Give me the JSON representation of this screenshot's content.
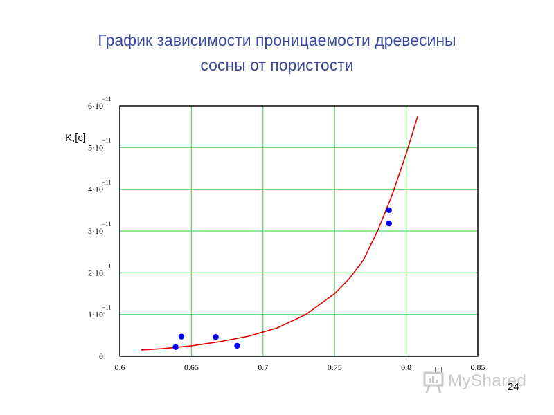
{
  "slide": {
    "title_line1": "График зависимости проницаемости древесины",
    "title_line2": "сосны от пористости",
    "page_number": "24",
    "glyph": "□"
  },
  "watermark": {
    "text": "MyShared",
    "icon": "presentation-board-icon",
    "color": "#c8c8c8"
  },
  "chart_data": {
    "type": "scatter",
    "title": "",
    "xlabel": "",
    "ylabel": "K,[c]",
    "xlim": [
      0.6,
      0.85
    ],
    "ylim": [
      0,
      6e-11
    ],
    "grid": true,
    "x_ticks": [
      {
        "value": 0.6,
        "label": "0.6"
      },
      {
        "value": 0.65,
        "label": "0.65"
      },
      {
        "value": 0.7,
        "label": "0.7"
      },
      {
        "value": 0.75,
        "label": "0.75"
      },
      {
        "value": 0.8,
        "label": "0.8"
      },
      {
        "value": 0.85,
        "label": "0.85"
      }
    ],
    "y_ticks": [
      {
        "value": 0,
        "label": "0",
        "mantissa": "0",
        "exponent": ""
      },
      {
        "value": 1e-11,
        "mantissa": "1·10",
        "exponent": "−11"
      },
      {
        "value": 2e-11,
        "mantissa": "2·10",
        "exponent": "−11"
      },
      {
        "value": 3e-11,
        "mantissa": "3·10",
        "exponent": "−11"
      },
      {
        "value": 4e-11,
        "mantissa": "4·10",
        "exponent": "−11"
      },
      {
        "value": 5e-11,
        "mantissa": "5·10",
        "exponent": "−11"
      },
      {
        "value": 6e-11,
        "mantissa": "6·10",
        "exponent": "−11"
      }
    ],
    "series": [
      {
        "type": "scatter",
        "color": "#0000ee",
        "points": [
          {
            "x": 0.639,
            "y": 2.2e-12
          },
          {
            "x": 0.643,
            "y": 4.7e-12
          },
          {
            "x": 0.667,
            "y": 4.6e-12
          },
          {
            "x": 0.682,
            "y": 2.5e-12
          },
          {
            "x": 0.788,
            "y": 3.5e-11
          },
          {
            "x": 0.788,
            "y": 3.18e-11
          }
        ]
      },
      {
        "type": "line",
        "color": "#e00000",
        "points": [
          {
            "x": 0.615,
            "y": 1.5e-12
          },
          {
            "x": 0.63,
            "y": 1.8e-12
          },
          {
            "x": 0.65,
            "y": 2.5e-12
          },
          {
            "x": 0.67,
            "y": 3.5e-12
          },
          {
            "x": 0.69,
            "y": 4.8e-12
          },
          {
            "x": 0.71,
            "y": 6.8e-12
          },
          {
            "x": 0.73,
            "y": 1e-11
          },
          {
            "x": 0.75,
            "y": 1.5e-11
          },
          {
            "x": 0.76,
            "y": 1.85e-11
          },
          {
            "x": 0.77,
            "y": 2.3e-11
          },
          {
            "x": 0.78,
            "y": 3e-11
          },
          {
            "x": 0.79,
            "y": 3.85e-11
          },
          {
            "x": 0.8,
            "y": 4.85e-11
          },
          {
            "x": 0.808,
            "y": 5.75e-11
          }
        ]
      }
    ],
    "colors": {
      "grid": "#5ed85e",
      "frame": "#000000"
    }
  }
}
